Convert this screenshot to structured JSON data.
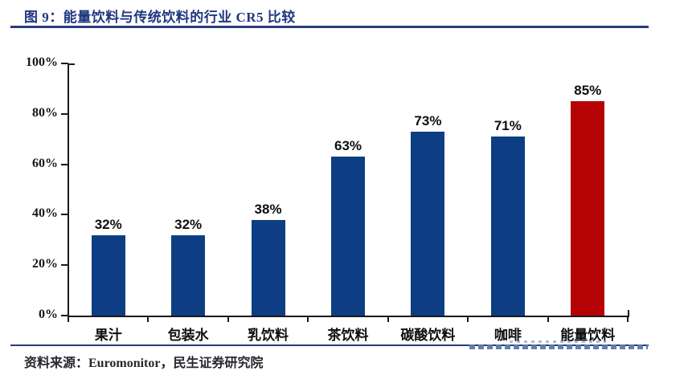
{
  "header": {
    "title": "图 9：能量饮料与传统饮料的行业 CR5 比较"
  },
  "chart_data": {
    "type": "bar",
    "title": "能量饮料与传统饮料的行业 CR5 比较",
    "categories": [
      "果汁",
      "包装水",
      "乳饮料",
      "茶饮料",
      "碳酸饮料",
      "咖啡",
      "能量饮料"
    ],
    "values": [
      32,
      32,
      38,
      63,
      73,
      71,
      85
    ],
    "value_labels": [
      "32%",
      "32%",
      "38%",
      "63%",
      "73%",
      "71%",
      "85%"
    ],
    "xlabel": "",
    "ylabel": "",
    "ylim": [
      0,
      100
    ],
    "ytick_step": 20,
    "ytick_labels": [
      "0%",
      "20%",
      "40%",
      "60%",
      "80%",
      "100%"
    ],
    "grid": false,
    "legend": "none",
    "bar_color": "#0d3e83",
    "highlight_index": 6,
    "highlight_color": "#b50204"
  },
  "footer": {
    "source": "资料来源：Euromonitor，民生证券研究院"
  },
  "colors": {
    "accent_navy": "#2a3b7c",
    "title_navy": "#21377e",
    "axis_black": "#1a1a1a",
    "watermark_blue": "#5b79ab"
  }
}
